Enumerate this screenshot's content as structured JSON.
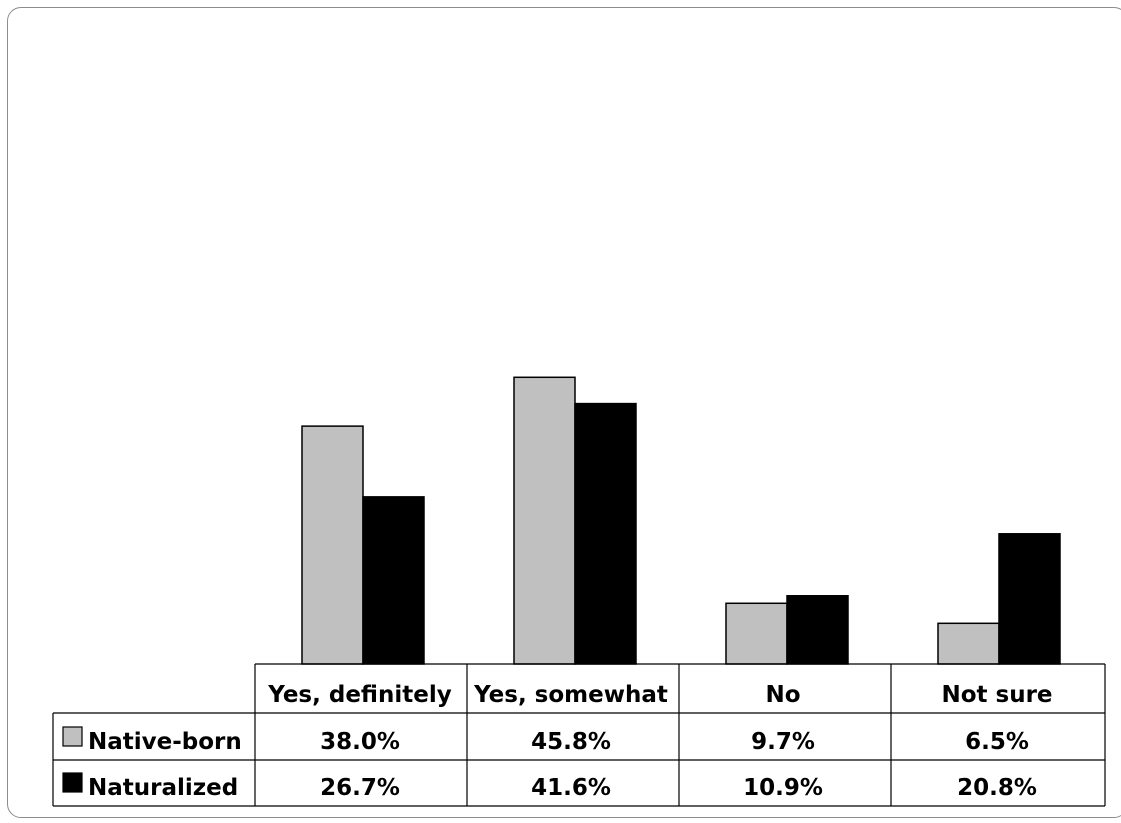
{
  "chart_data": {
    "type": "bar",
    "title": "",
    "xlabel": "",
    "ylabel": "",
    "categories": [
      "Yes, definitely",
      "Yes, somewhat",
      "No",
      "Not sure"
    ],
    "series": [
      {
        "name": "Native-born",
        "color": "#c0c0c0",
        "values": [
          38.0,
          45.8,
          9.7,
          6.5
        ],
        "labels": [
          "38.0%",
          "45.8%",
          "9.7%",
          "6.5%"
        ]
      },
      {
        "name": "Naturalized",
        "color": "#000000",
        "values": [
          26.7,
          41.6,
          10.9,
          20.8
        ],
        "labels": [
          "26.7%",
          "41.6%",
          "10.9%",
          "20.8%"
        ]
      }
    ],
    "ylim": [
      0,
      100
    ],
    "grid": false,
    "legend": "data-table-left"
  }
}
